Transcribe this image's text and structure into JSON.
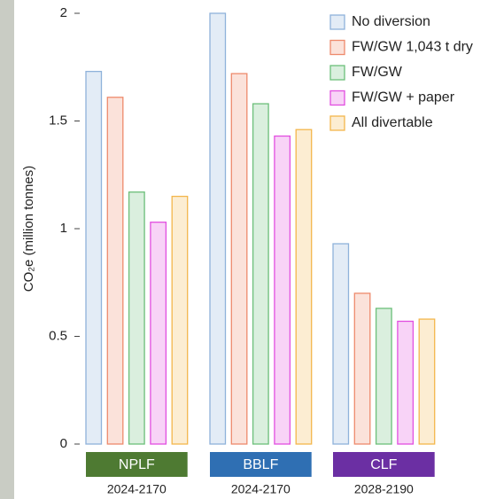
{
  "chart_data": {
    "type": "bar",
    "ylabel": "CO₂e (million tonnes)",
    "categories": [
      "NPLF",
      "BBLF",
      "CLF"
    ],
    "category_colors": [
      "#4e7a32",
      "#2f6fb3",
      "#6b2fa3"
    ],
    "periods": [
      "2024-2170",
      "2024-2170",
      "2028-2190"
    ],
    "series": [
      {
        "name": "No diversion",
        "color": "#8fb2da",
        "values": [
          1.73,
          2.0,
          0.93
        ]
      },
      {
        "name": "FW/GW 1,043 t dry",
        "color": "#ee8a6c",
        "values": [
          1.61,
          1.72,
          0.7
        ]
      },
      {
        "name": "FW/GW",
        "color": "#6cbf7a",
        "values": [
          1.17,
          1.58,
          0.63
        ]
      },
      {
        "name": "FW/GW + paper",
        "color": "#e24ee0",
        "values": [
          1.03,
          1.43,
          0.57
        ]
      },
      {
        "name": "All divertable",
        "color": "#f3b64c",
        "values": [
          1.15,
          1.46,
          0.58
        ]
      }
    ],
    "ylim": [
      0,
      2
    ],
    "yticks": [
      0,
      0.5,
      1,
      1.5,
      2
    ]
  }
}
